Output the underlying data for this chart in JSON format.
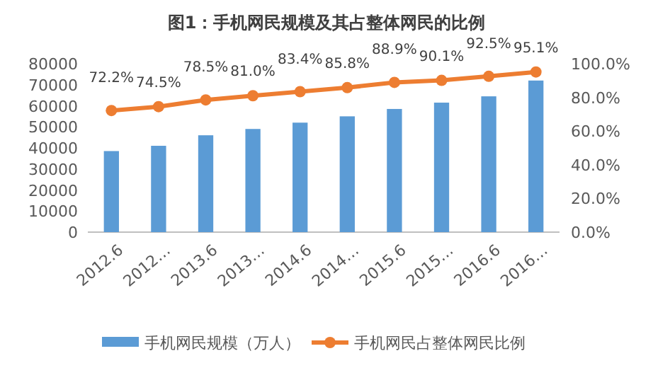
{
  "chart_data": {
    "type": "bar",
    "title": "图1：手机网民规模及其占整体网民的比例",
    "categories": [
      "2012.6",
      "2012…",
      "2013.6",
      "2013…",
      "2014.6",
      "2014…",
      "2015.6",
      "2015…",
      "2016.6",
      "2016…"
    ],
    "series": [
      {
        "name": "手机网民规模（万人）",
        "color": "#5b9bd5",
        "values": [
          38500,
          41000,
          46000,
          49000,
          52000,
          55000,
          58500,
          61500,
          64500,
          72000
        ]
      },
      {
        "name": "手机网民占整体网民比例",
        "type": "line",
        "axis": "y2",
        "color": "#ed7d31",
        "marker": "circle",
        "values": [
          72.2,
          74.5,
          78.5,
          81.0,
          83.4,
          85.8,
          88.9,
          90.1,
          92.5,
          95.1
        ],
        "value_labels": [
          "72.2%",
          "74.5%",
          "78.5%",
          "81.0%",
          "83.4%",
          "85.8%",
          "88.9%",
          "90.1%",
          "92.5%",
          "95.1%"
        ]
      }
    ],
    "ylim": [
      0,
      80000
    ],
    "yticks": [
      0,
      10000,
      20000,
      30000,
      40000,
      50000,
      60000,
      70000,
      80000
    ],
    "y2lim": [
      0,
      100
    ],
    "y2ticks": [
      {
        "value": 0,
        "label": "0.0%"
      },
      {
        "value": 20,
        "label": "20.0%"
      },
      {
        "value": 40,
        "label": "40.0%"
      },
      {
        "value": 60,
        "label": "60.0%"
      },
      {
        "value": 80,
        "label": "80.0%"
      },
      {
        "value": 100,
        "label": "100.0%"
      }
    ],
    "legend": "bottom",
    "grid": false
  }
}
